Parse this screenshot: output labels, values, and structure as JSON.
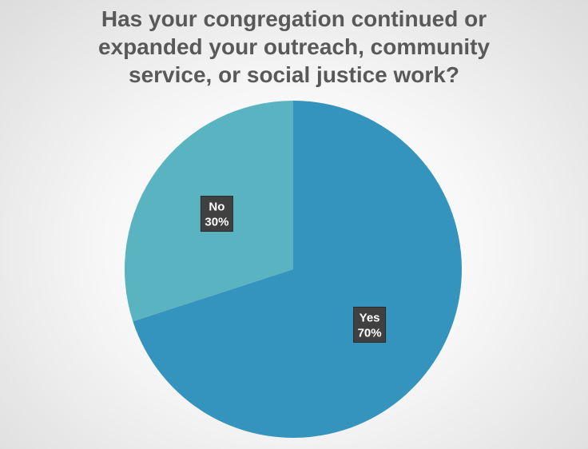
{
  "chart_data": {
    "type": "pie",
    "title": "Has your congregation continued or expanded your outreach, community service, or social justice work?",
    "title_lines": [
      "Has your congregation continued or",
      "expanded your outreach, community",
      "service, or social justice work?"
    ],
    "categories": [
      "Yes",
      "No"
    ],
    "values": [
      70,
      30
    ],
    "data_labels": [
      "70%",
      "30%"
    ],
    "colors": [
      "#3594BD",
      "#5AB3C0"
    ],
    "legend": "none"
  }
}
